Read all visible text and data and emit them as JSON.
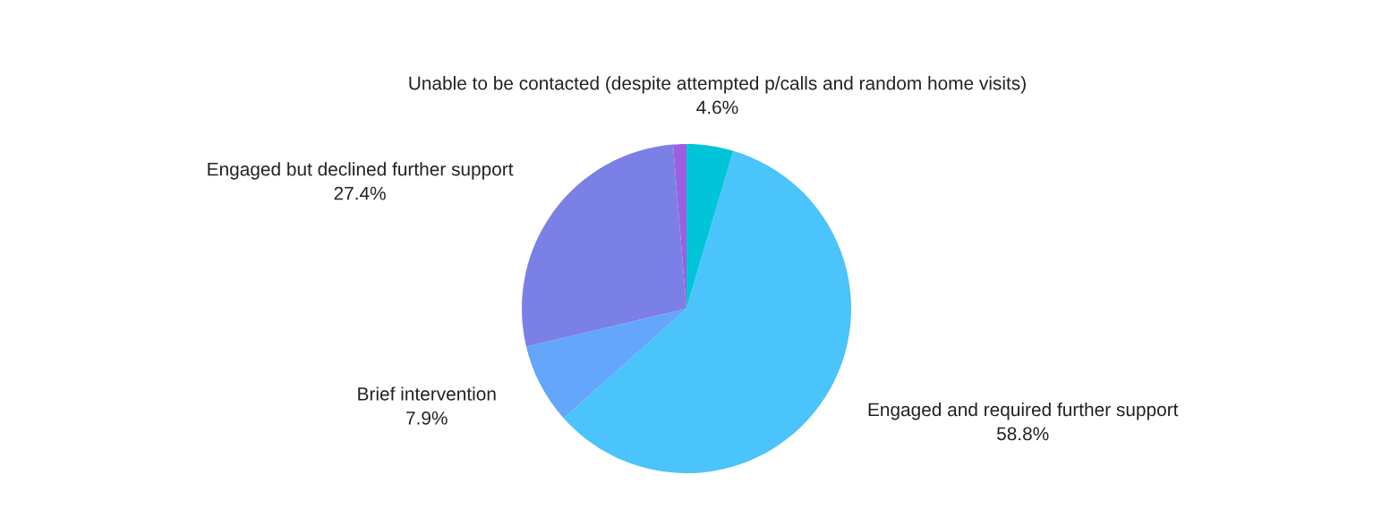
{
  "chart_data": {
    "type": "pie",
    "categories": [
      "Unable to be contacted (despite attempted p/calls and random home visits)",
      "Engaged and required further support",
      "Brief intervention",
      "Engaged but declined further support",
      null
    ],
    "values": [
      4.6,
      58.8,
      7.9,
      27.4,
      1.3
    ],
    "value_labels": [
      "4.6%",
      "58.8%",
      "7.9%",
      "27.4%",
      null
    ],
    "colors": [
      "#00c5d8",
      "#4bc3fb",
      "#63a6fb",
      "#7b80e6",
      "#9b5fe0"
    ],
    "legend": false
  }
}
